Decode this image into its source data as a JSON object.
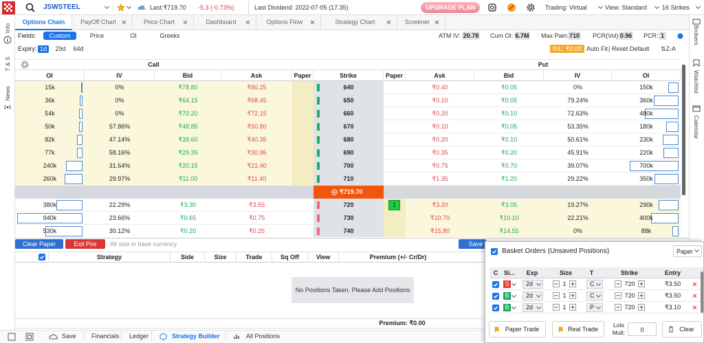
{
  "header": {
    "symbol": "JSWSTEEL",
    "last": "Last:₹719.70",
    "change": "-5.3 (-0.73%)",
    "dividend": "Last Dividend: 2022-07-05 (17.35)",
    "upgrade": "UPGRADE PLAN",
    "trading": "Trading: Virtual",
    "view": "View: Standard",
    "strikes": "16 Strikes"
  },
  "left_sidebar": [
    "Info",
    "T & S",
    "News"
  ],
  "right_sidebar": [
    "Brokers",
    "Watchlist",
    "Calendar"
  ],
  "tabs": [
    "Options Chain",
    "PayOff Chart",
    "Price Chart",
    "Dashboard",
    "Options Flow",
    "Strategy Chart",
    "Screener"
  ],
  "fields": {
    "label": "Fields:",
    "options": [
      "Custom",
      "Price",
      "OI",
      "Greeks"
    ]
  },
  "expiry": {
    "label": "Expiry:",
    "options": [
      "1d",
      "29d",
      "64d"
    ]
  },
  "stats": [
    {
      "label": "ATM IV:",
      "value": "20.78"
    },
    {
      "label": "Cum OI:",
      "value": "6.7M"
    },
    {
      "label": "Max Pain:",
      "value": "710"
    },
    {
      "label": "PCR(Vol):",
      "value": "0.96"
    },
    {
      "label": "PCR:",
      "value": "1"
    }
  ],
  "controls": {
    "pl": "P/L: ₹0.00",
    "auto_fit": "Auto Fit",
    "reset": "| Reset Default",
    "sort": "⇅Z-A"
  },
  "chain": {
    "call_label": "Call",
    "put_label": "Put",
    "columns": [
      "OI",
      "IV",
      "Bid",
      "Ask",
      "Paper",
      "Strike",
      "Paper",
      "Ask",
      "Bid",
      "IV",
      "OI"
    ],
    "spot": "₹719.70",
    "rows": [
      {
        "strike": "640",
        "call_oi": {
          "value": 15000,
          "label": "15k"
        },
        "call_iv": "0%",
        "call_bid": "₹78.80",
        "call_ask": "₹80.25",
        "put_ask": "₹0.40",
        "put_bid": "₹0.05",
        "put_iv": "0%",
        "put_oi": {
          "value": 150000,
          "label": "150k"
        }
      },
      {
        "strike": "650",
        "call_oi": {
          "value": 36000,
          "label": "36k"
        },
        "call_iv": "0%",
        "call_bid": "₹64.15",
        "call_ask": "₹68.45",
        "put_ask": "₹0.10",
        "put_bid": "₹0.05",
        "put_iv": "79.24%",
        "put_oi": {
          "value": 360000,
          "label": "360k"
        }
      },
      {
        "strike": "660",
        "call_oi": {
          "value": 54000,
          "label": "54k"
        },
        "call_iv": "0%",
        "call_bid": "₹70.20",
        "call_ask": "₹72.15",
        "put_ask": "₹0.20",
        "put_bid": "₹0.10",
        "put_iv": "72.63%",
        "put_oi": {
          "value": 480000,
          "label": "480k"
        }
      },
      {
        "strike": "670",
        "call_oi": {
          "value": 50000,
          "label": "50k"
        },
        "call_iv": "57.86%",
        "call_bid": "₹48.85",
        "call_ask": "₹50.80",
        "put_ask": "₹0.10",
        "put_bid": "₹0.05",
        "put_iv": "53.35%",
        "put_oi": {
          "value": 180000,
          "label": "180k"
        }
      },
      {
        "strike": "680",
        "call_oi": {
          "value": 82000,
          "label": "82k"
        },
        "call_iv": "47.14%",
        "call_bid": "₹39.60",
        "call_ask": "₹40.35",
        "put_ask": "₹0.20",
        "put_bid": "₹0.10",
        "put_iv": "50.61%",
        "put_oi": {
          "value": 230000,
          "label": "230k"
        }
      },
      {
        "strike": "690",
        "call_oi": {
          "value": 77000,
          "label": "77k"
        },
        "call_iv": "58.16%",
        "call_bid": "₹29.35",
        "call_ask": "₹30.95",
        "put_ask": "₹0.35",
        "put_bid": "₹0.20",
        "put_iv": "45.91%",
        "put_oi": {
          "value": 220000,
          "label": "220k"
        }
      },
      {
        "strike": "700",
        "call_oi": {
          "value": 240000,
          "label": "240k"
        },
        "call_iv": "31.64%",
        "call_bid": "₹20.15",
        "call_ask": "₹21.40",
        "put_ask": "₹0.75",
        "put_bid": "₹0.70",
        "put_iv": "39.07%",
        "put_oi": {
          "value": 700000,
          "label": "700k"
        }
      },
      {
        "strike": "710",
        "call_oi": {
          "value": 260000,
          "label": "260k"
        },
        "call_iv": "29.97%",
        "call_bid": "₹11.00",
        "call_ask": "₹11.40",
        "put_ask": "₹1.35",
        "put_bid": "₹1.20",
        "put_iv": "29.22%",
        "put_oi": {
          "value": 350000,
          "label": "350k"
        }
      },
      {
        "strike": "720",
        "call_oi": {
          "value": 380000,
          "label": "380k"
        },
        "call_iv": "22.29%",
        "call_bid": "₹3.30",
        "call_ask": "₹3.55",
        "put_paper": "1",
        "put_ask": "₹3.20",
        "put_bid": "₹3.05",
        "put_iv": "19.27%",
        "put_oi": {
          "value": 290000,
          "label": "290k"
        }
      },
      {
        "strike": "730",
        "call_oi": {
          "value": 940000,
          "label": "940k"
        },
        "call_iv": "23.66%",
        "call_bid": "₹0.65",
        "call_ask": "₹0.75",
        "put_ask": "₹10.70",
        "put_bid": "₹10.10",
        "put_iv": "22.21%",
        "put_oi": {
          "value": 400000,
          "label": "400k"
        }
      },
      {
        "strike": "740",
        "call_oi": {
          "value": 530000,
          "label": "530k"
        },
        "call_iv": "30.12%",
        "call_bid": "₹0.20",
        "call_ask": "₹0.25",
        "put_ask": "₹15.80",
        "put_bid": "₹14.55",
        "put_iv": "0%",
        "put_oi": {
          "value": 88000,
          "label": "88k"
        }
      }
    ]
  },
  "positions": {
    "toolbar": {
      "clear": "Clear Paper",
      "exit": "Exit Pos",
      "note": "All size in base currency",
      "save": "Save"
    },
    "columns": [
      "Strategy",
      "Side",
      "Size",
      "Trade",
      "Sq Off",
      "View",
      "Premium (+/- Cr/Dr)"
    ],
    "empty": "No Positions Taken. Please Add Positions",
    "premium": "Premium: ₹0.00"
  },
  "footer": [
    "Save",
    "Financials",
    "Ledger",
    "Strategy Builder",
    "All Positions"
  ],
  "basket": {
    "title": "Basket Orders (Unsaved Positions)",
    "mode": "Paper",
    "columns": [
      "C",
      "Si...",
      "Exp",
      "Size",
      "T",
      "Strike",
      "Entry"
    ],
    "rows": [
      {
        "side": "S",
        "side_color": "#e53935",
        "exp": "2d",
        "size": "1",
        "type": "C",
        "strike": "720",
        "entry": "₹3.50"
      },
      {
        "side": "B",
        "side_color": "#1aa760",
        "exp": "2d",
        "size": "1",
        "type": "C",
        "strike": "720",
        "entry": "₹3.50"
      },
      {
        "side": "B",
        "side_color": "#1aa760",
        "exp": "2d",
        "size": "1",
        "type": "P",
        "strike": "720",
        "entry": "₹3.10"
      }
    ],
    "buttons": {
      "paper": "Paper Trade",
      "real": "Real Trade",
      "lots_label": "Lots Mult:",
      "lots": "0",
      "clear": "Clear"
    }
  }
}
